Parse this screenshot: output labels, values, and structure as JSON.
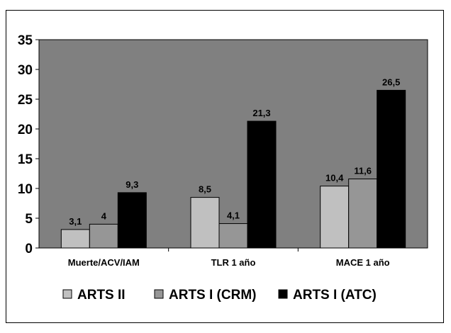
{
  "chart_data": {
    "type": "bar",
    "categories": [
      "Muerte/ACV/IAM",
      "TLR 1 año",
      "MACE 1 año"
    ],
    "series": [
      {
        "name": "ARTS II",
        "values": [
          3.1,
          8.5,
          10.4
        ],
        "labels": [
          "3,1",
          "8,5",
          "10,4"
        ],
        "color": "#c0c0c0"
      },
      {
        "name": "ARTS I (CRM)",
        "values": [
          4,
          4.1,
          11.6
        ],
        "labels": [
          "4",
          "4,1",
          "11,6"
        ],
        "color": "#969696"
      },
      {
        "name": "ARTS I (ATC)",
        "values": [
          9.3,
          21.3,
          26.5
        ],
        "labels": [
          "9,3",
          "21,3",
          "26,5"
        ],
        "color": "#000000"
      }
    ],
    "ylim": [
      0,
      35
    ],
    "yticks": [
      "0",
      "5",
      "10",
      "15",
      "20",
      "25",
      "30",
      "35"
    ],
    "grid": false,
    "legend": "bottom",
    "plot_background": "#808080"
  }
}
